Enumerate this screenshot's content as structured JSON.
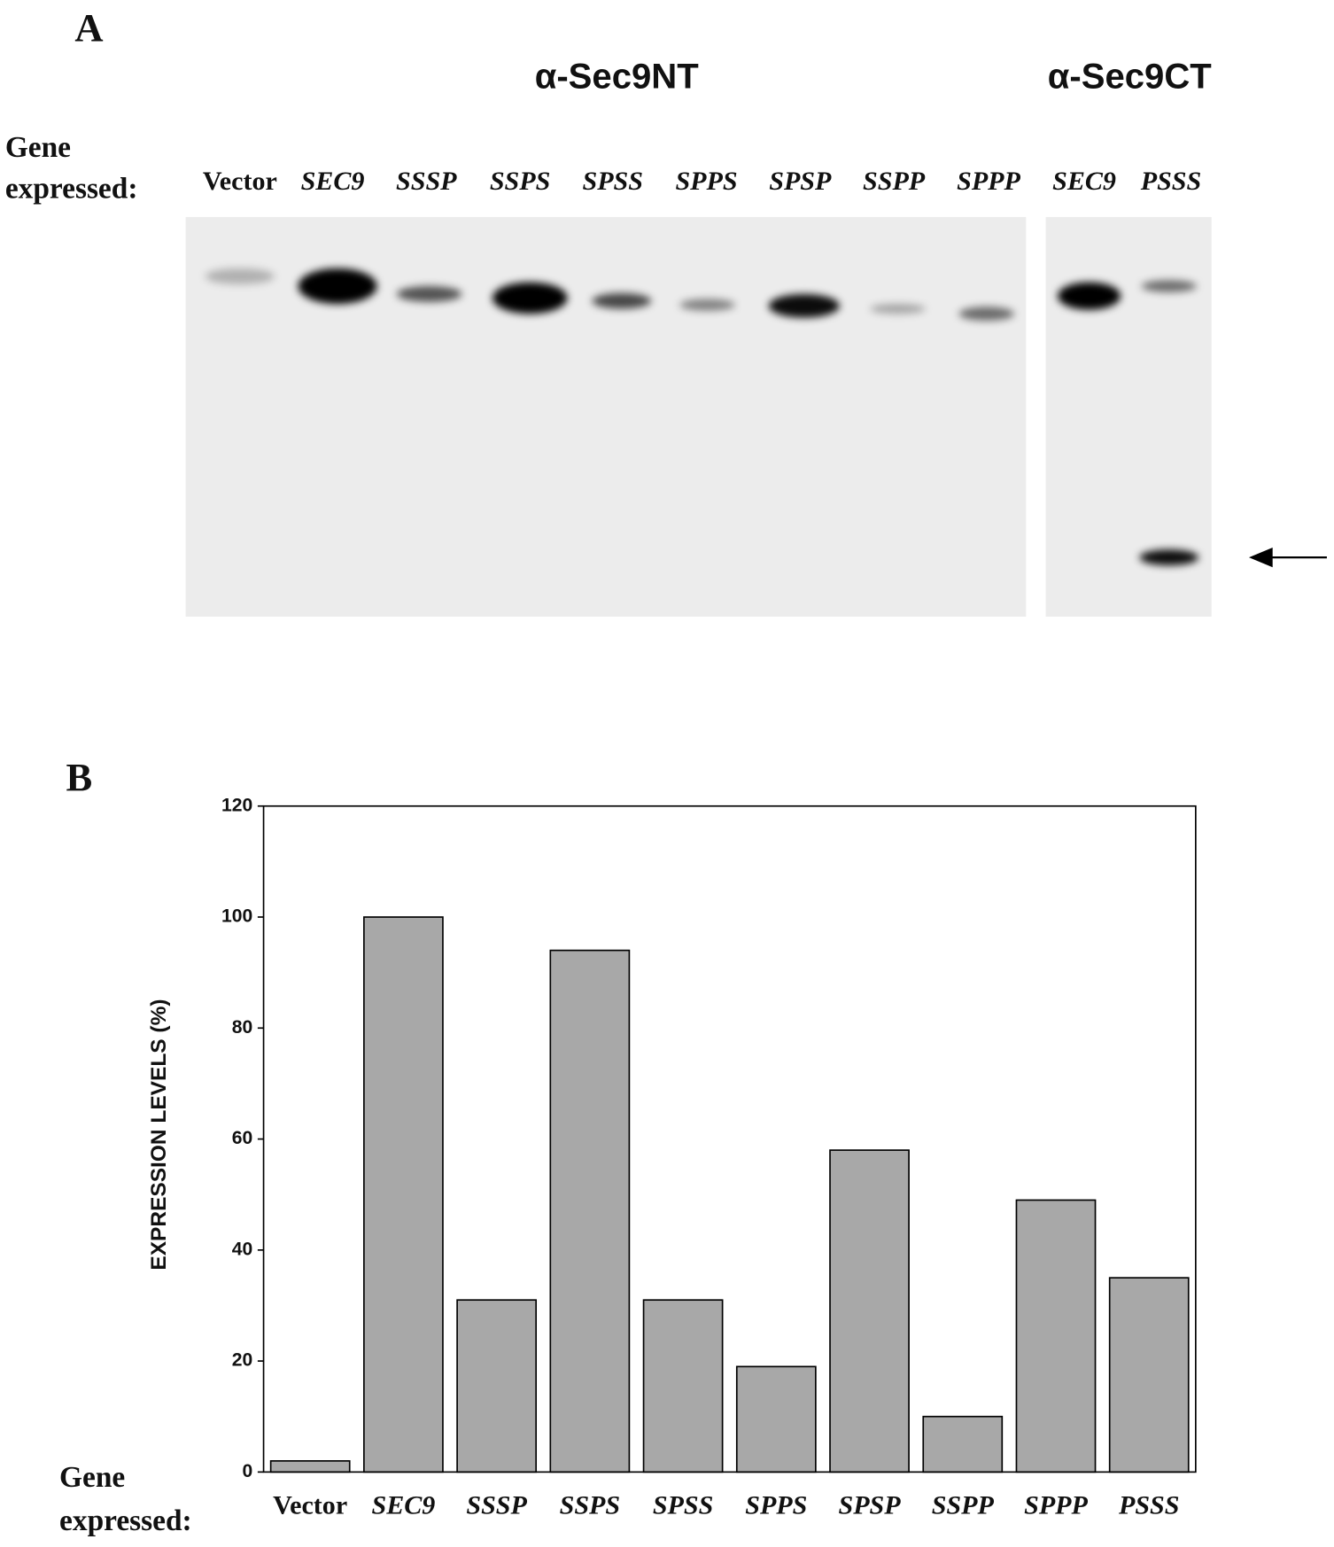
{
  "panel_a": {
    "label": "A",
    "antibody_nt": "α-Sec9NT",
    "antibody_ct": "α-Sec9CT",
    "gene_label_line1": "Gene",
    "gene_label_line2": "expressed:",
    "lanes": [
      "Vector",
      "SEC9",
      "SSSP",
      "SSPS",
      "SPSS",
      "SPPS",
      "SPSP",
      "SSPP",
      "SPPP",
      "SEC9",
      "PSSS"
    ]
  },
  "chart_data": {
    "type": "bar",
    "panel_label": "B",
    "y_label": "EXPRESSION LEVELS (%)",
    "x_label_line1": "Gene",
    "x_label_line2": "expressed:",
    "categories": [
      "Vector",
      "SEC9",
      "SSSP",
      "SSPS",
      "SPSS",
      "SPPS",
      "SPSP",
      "SSPP",
      "SPPP",
      "PSSS"
    ],
    "values": [
      2,
      100,
      31,
      94,
      31,
      19,
      58,
      10,
      49,
      35
    ],
    "color": "#a8a8a8",
    "ylim": [
      0,
      120
    ],
    "yticks": [
      0,
      20,
      40,
      60,
      80,
      100,
      120
    ]
  }
}
